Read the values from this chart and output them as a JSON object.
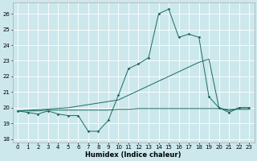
{
  "xlabel": "Humidex (Indice chaleur)",
  "bg_color": "#cce8ec",
  "grid_color": "#ffffff",
  "line_color": "#1a6b5e",
  "xlim": [
    -0.5,
    23.5
  ],
  "ylim": [
    17.8,
    26.7
  ],
  "yticks": [
    18,
    19,
    20,
    21,
    22,
    23,
    24,
    25,
    26
  ],
  "xticks": [
    0,
    1,
    2,
    3,
    4,
    5,
    6,
    7,
    8,
    9,
    10,
    11,
    12,
    13,
    14,
    15,
    16,
    17,
    18,
    19,
    20,
    21,
    22,
    23
  ],
  "line1_x": [
    0,
    1,
    2,
    3,
    4,
    5,
    6,
    7,
    8,
    9,
    10,
    11,
    12,
    13,
    14,
    15,
    16,
    17,
    18,
    19,
    20,
    21,
    22,
    23
  ],
  "line1_y": [
    19.8,
    19.7,
    19.6,
    19.8,
    19.6,
    19.5,
    19.5,
    18.5,
    18.5,
    19.2,
    20.8,
    22.5,
    22.8,
    23.2,
    26.0,
    26.3,
    24.5,
    24.7,
    24.5,
    20.7,
    20.0,
    19.7,
    20.0,
    20.0
  ],
  "line2_x": [
    0,
    5,
    10,
    14,
    15,
    16,
    17,
    18,
    19,
    20,
    21,
    22,
    23
  ],
  "line2_y": [
    19.8,
    20.0,
    20.5,
    21.7,
    22.0,
    22.3,
    22.6,
    22.9,
    23.1,
    20.0,
    19.8,
    20.0,
    20.0
  ],
  "line3_x": [
    0,
    1,
    2,
    3,
    4,
    5,
    6,
    7,
    8,
    9,
    10,
    11,
    12,
    13,
    14,
    15,
    16,
    17,
    18,
    19,
    20,
    21,
    22,
    23
  ],
  "line3_y": [
    19.8,
    19.8,
    19.8,
    19.85,
    19.85,
    19.85,
    19.85,
    19.85,
    19.85,
    19.85,
    19.9,
    19.9,
    19.95,
    19.95,
    19.95,
    19.95,
    19.95,
    19.95,
    19.95,
    19.95,
    19.95,
    19.9,
    19.9,
    19.9
  ]
}
